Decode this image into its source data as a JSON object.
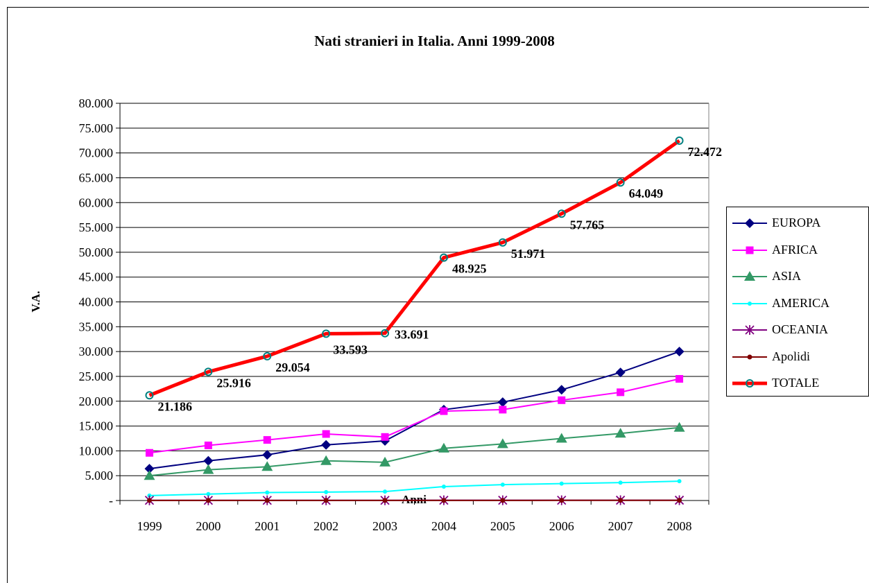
{
  "chart_data": {
    "type": "line",
    "title": "Nati stranieri in Italia. Anni 1999-2008",
    "xlabel": "Anni",
    "ylabel": "V.A.",
    "categories": [
      "1999",
      "2000",
      "2001",
      "2002",
      "2003",
      "2004",
      "2005",
      "2006",
      "2007",
      "2008"
    ],
    "ylim": [
      0,
      80000
    ],
    "yticks": [
      0,
      5000,
      10000,
      15000,
      20000,
      25000,
      30000,
      35000,
      40000,
      45000,
      50000,
      55000,
      60000,
      65000,
      70000,
      75000,
      80000
    ],
    "ytick_labels": [
      "-",
      "5.000",
      "10.000",
      "15.000",
      "20.000",
      "25.000",
      "30.000",
      "35.000",
      "40.000",
      "45.000",
      "50.000",
      "55.000",
      "60.000",
      "65.000",
      "70.000",
      "75.000",
      "80.000"
    ],
    "grid": "horizontal",
    "legend_position": "right",
    "series": [
      {
        "name": "EUROPA",
        "color": "#000080",
        "marker": "diamond",
        "values": [
          6400,
          8000,
          9200,
          11200,
          12000,
          18300,
          19800,
          22300,
          25800,
          30000
        ]
      },
      {
        "name": "AFRICA",
        "color": "#ff00ff",
        "marker": "square",
        "values": [
          9600,
          11100,
          12200,
          13400,
          12800,
          18000,
          18300,
          20200,
          21800,
          24500
        ]
      },
      {
        "name": "ASIA",
        "color": "#339966",
        "marker": "triangle",
        "values": [
          5000,
          6200,
          6800,
          8000,
          7700,
          10500,
          11400,
          12500,
          13500,
          14700
        ]
      },
      {
        "name": "AMERICA",
        "color": "#00ffff",
        "marker": "circle-small",
        "values": [
          1000,
          1300,
          1600,
          1700,
          1800,
          2800,
          3200,
          3400,
          3600,
          3900
        ]
      },
      {
        "name": "OCEANIA",
        "color": "#800080",
        "marker": "asterisk",
        "values": [
          30,
          30,
          40,
          40,
          40,
          50,
          50,
          50,
          60,
          60
        ]
      },
      {
        "name": "Apolidi",
        "color": "#800000",
        "marker": "dot",
        "values": [
          10,
          10,
          10,
          20,
          20,
          20,
          20,
          30,
          30,
          30
        ]
      },
      {
        "name": "TOTALE",
        "color": "#ff0000",
        "marker_color": "#008080",
        "marker": "circle-open",
        "line_width": "thick",
        "values": [
          21186,
          25916,
          29054,
          33593,
          33691,
          48925,
          51971,
          57765,
          64049,
          72472
        ],
        "labels": [
          "21.186",
          "25.916",
          "29.054",
          "33.593",
          "33.691",
          "48.925",
          "51.971",
          "57.765",
          "64.049",
          "72.472"
        ]
      }
    ]
  }
}
